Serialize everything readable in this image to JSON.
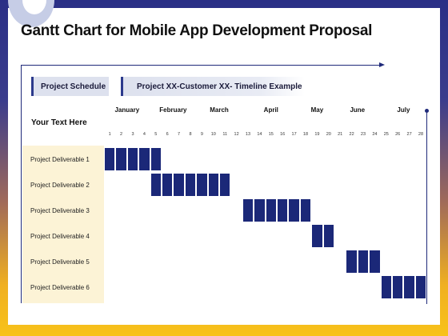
{
  "title": "Gantt Chart for Mobile App Development Proposal",
  "tabs": {
    "schedule": "Project Schedule",
    "timeline": "Project XX-Customer XX- Timeline Example"
  },
  "side_text": "Your Text Here",
  "colors": {
    "bar": "#1b2878",
    "label_panel": "#fcf3d6",
    "tab_bg": "#dde1ee",
    "frame": "#1f2a7a"
  },
  "chart_data": {
    "type": "gantt",
    "months": [
      {
        "name": "January",
        "start_week": 1,
        "end_week": 4
      },
      {
        "name": "February",
        "start_week": 5,
        "end_week": 8
      },
      {
        "name": "March",
        "start_week": 9,
        "end_week": 12
      },
      {
        "name": "April",
        "start_week": 13,
        "end_week": 17
      },
      {
        "name": "May",
        "start_week": 18,
        "end_week": 20
      },
      {
        "name": "June",
        "start_week": 21,
        "end_week": 24
      },
      {
        "name": "July",
        "start_week": 25,
        "end_week": 28
      }
    ],
    "weeks": [
      "1",
      "2",
      "3",
      "4",
      "5",
      "6",
      "7",
      "8",
      "9",
      "10",
      "11",
      "12",
      "13",
      "14",
      "15",
      "16",
      "17",
      "18",
      "19",
      "20",
      "21",
      "22",
      "23",
      "24",
      "25",
      "26",
      "27",
      "28"
    ],
    "tasks": [
      {
        "name": "Project Deliverable 1",
        "start": 1,
        "end": 5
      },
      {
        "name": "Project Deliverable 2",
        "start": 5,
        "end": 11
      },
      {
        "name": "Project Deliverable 3",
        "start": 13,
        "end": 18
      },
      {
        "name": "Project Deliverable 4",
        "start": 19,
        "end": 20
      },
      {
        "name": "Project Deliverable 5",
        "start": 22,
        "end": 24
      },
      {
        "name": "Project Deliverable 6",
        "start": 25,
        "end": 28
      }
    ]
  }
}
